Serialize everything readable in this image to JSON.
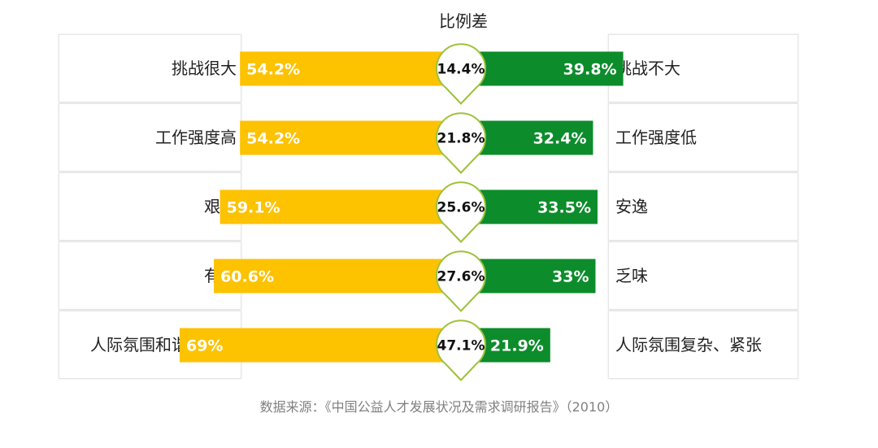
{
  "chart_data": {
    "type": "bar",
    "title": "比例差",
    "left_categories": [
      "挑战很大",
      "工作强度高",
      "艰辛",
      "有趣",
      "人际氛围和谐、温暖"
    ],
    "right_categories": [
      "挑战不大",
      "工作强度低",
      "安逸",
      "乏味",
      "人际氛围复杂、紧张"
    ],
    "left_values": [
      54.2,
      54.2,
      59.1,
      60.6,
      69
    ],
    "right_values": [
      39.8,
      32.4,
      33.5,
      33,
      21.9
    ],
    "difference_values": [
      14.4,
      21.8,
      25.6,
      27.6,
      47.1
    ],
    "left_labels": [
      "54.2%",
      "54.2%",
      "59.1%",
      "60.6%",
      "69%"
    ],
    "right_labels": [
      "39.8%",
      "32.4%",
      "33.5%",
      "33%",
      "21.9%"
    ],
    "difference_labels": [
      "14.4%",
      "21.8%",
      "25.6%",
      "27.6%",
      "47.1%"
    ],
    "colors": {
      "left": "#fdc200",
      "right": "#0d8c2b",
      "marker_border": "#9fc13a"
    }
  },
  "source": "数据来源：《中国公益人才发展状况及需求调研报告》（2010）"
}
